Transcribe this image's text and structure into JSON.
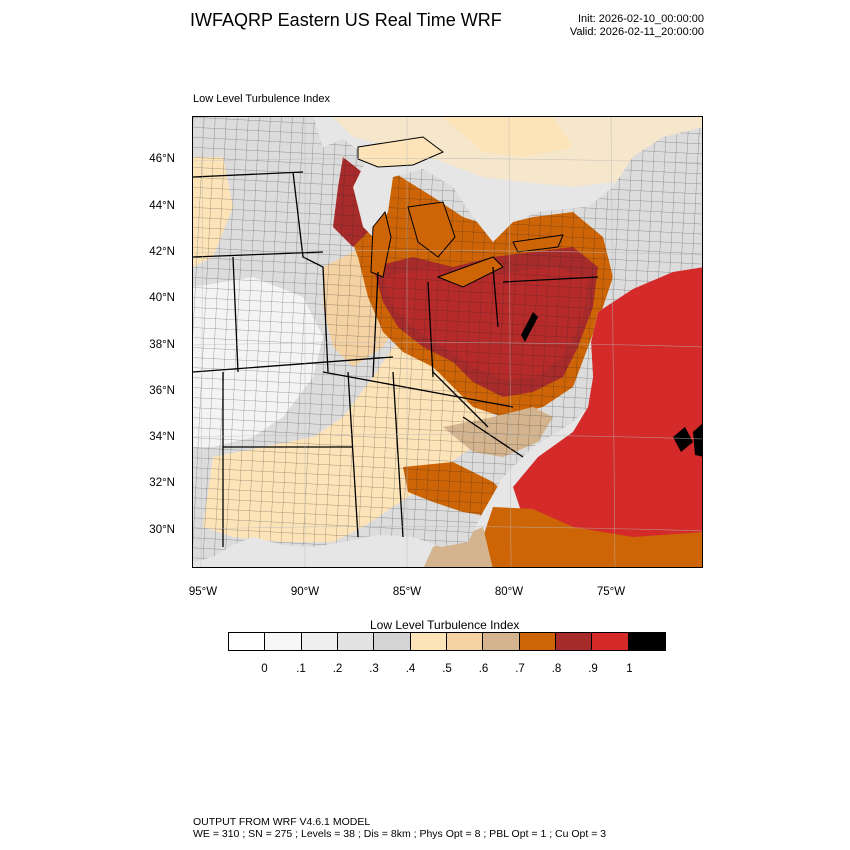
{
  "header": {
    "title": "IWFAQRP Eastern US Real Time WRF",
    "init": "Init: 2026-02-10_00:00:00",
    "valid": "Valid: 2026-02-11_20:00:00"
  },
  "map": {
    "field_label": "Low Level Turbulence Index",
    "lat_labels": [
      "46°N",
      "44°N",
      "42°N",
      "40°N",
      "38°N",
      "36°N",
      "34°N",
      "32°N",
      "30°N"
    ],
    "lon_labels": [
      "95°W",
      "90°W",
      "85°W",
      "80°W",
      "75°W"
    ]
  },
  "colorbar": {
    "title": "Low Level Turbulence Index",
    "colors": [
      "#ffffff",
      "#f7f7f7",
      "#efefef",
      "#e2e2e2",
      "#d4d4d4",
      "#fde4b8",
      "#f5d2a4",
      "#d4b48e",
      "#cd6406",
      "#a82b2b",
      "#d42a2a",
      "#000000"
    ],
    "labels": [
      "0",
      ".1",
      ".2",
      ".3",
      ".4",
      ".5",
      ".6",
      ".7",
      ".8",
      ".9",
      "1"
    ]
  },
  "footer": {
    "line1": "OUTPUT FROM WRF V4.6.1 MODEL",
    "line2": "WE = 310 ; SN = 275 ; Levels = 38 ; Dis = 8km ; Phys Opt = 8 ; PBL Opt = 1 ; Cu Opt = 3"
  }
}
